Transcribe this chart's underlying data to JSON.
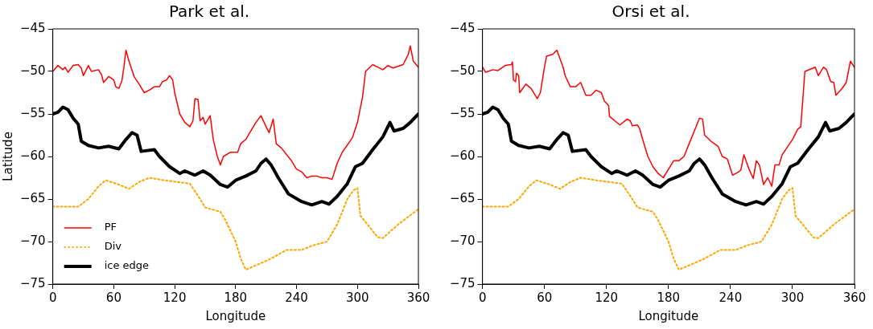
{
  "chart_data": [
    {
      "type": "line",
      "title": "Park et al.",
      "xlabel": "Longitude",
      "ylabel": "Latitude",
      "xlim": [
        0,
        360
      ],
      "xticks": [
        0,
        60,
        120,
        180,
        240,
        300,
        360
      ],
      "ylim": [
        -75,
        -45
      ],
      "yticks": [
        -75,
        -70,
        -65,
        -60,
        -55,
        -50,
        -45
      ],
      "legend": "bottom left",
      "grid": false,
      "series": [
        {
          "name": "PF",
          "color": "#ff0000",
          "line_style": "solid",
          "x": [
            0,
            5,
            10,
            12,
            15,
            20,
            25,
            28,
            30,
            35,
            38,
            45,
            48,
            50,
            55,
            60,
            62,
            65,
            68,
            70,
            72,
            75,
            80,
            85,
            90,
            95,
            100,
            105,
            108,
            112,
            115,
            118,
            120,
            125,
            130,
            135,
            138,
            140,
            143,
            145,
            148,
            150,
            155,
            158,
            162,
            165,
            168,
            175,
            182,
            185,
            190,
            195,
            200,
            205,
            210,
            213,
            217,
            220,
            225,
            235,
            240,
            245,
            250,
            255,
            260,
            265,
            270,
            275,
            280,
            285,
            295,
            300,
            305,
            308,
            315,
            320,
            325,
            330,
            335,
            345,
            350,
            352,
            355,
            360
          ],
          "values": [
            -50,
            -49.3,
            -49.8,
            -49.5,
            -50.1,
            -49.3,
            -49.2,
            -49.6,
            -50.5,
            -49.3,
            -50,
            -49.8,
            -50.4,
            -51.3,
            -50.6,
            -51,
            -51.8,
            -52,
            -51.1,
            -49.5,
            -47.5,
            -48.8,
            -50.6,
            -51.5,
            -52.5,
            -52.2,
            -51.8,
            -51.8,
            -51.2,
            -51,
            -50.5,
            -51,
            -52.5,
            -55,
            -56,
            -56.5,
            -55.8,
            -53.2,
            -53.3,
            -55.8,
            -55.4,
            -56.2,
            -55.2,
            -58,
            -60,
            -61,
            -60,
            -59.5,
            -59.5,
            -58.5,
            -58,
            -57,
            -56,
            -55.2,
            -56.5,
            -57.2,
            -55.6,
            -58.5,
            -59,
            -60.5,
            -61.5,
            -61.8,
            -62.5,
            -62.3,
            -62.3,
            -62.5,
            -62.5,
            -62.7,
            -60.8,
            -59.5,
            -57.8,
            -56,
            -53,
            -50,
            -49.2,
            -49.5,
            -49.8,
            -49.3,
            -49.6,
            -49.2,
            -48,
            -47,
            -48.8,
            -49.5
          ]
        },
        {
          "name": "Div",
          "color": "#ffa500",
          "line_style": "dotted",
          "x": [
            0,
            25,
            35,
            45,
            52,
            65,
            75,
            85,
            95,
            110,
            135,
            145,
            150,
            165,
            170,
            180,
            185,
            190,
            200,
            215,
            230,
            245,
            255,
            270,
            280,
            290,
            296,
            300,
            303,
            310,
            320,
            325,
            340,
            360
          ],
          "values": [
            -65.9,
            -65.9,
            -65,
            -63.5,
            -62.8,
            -63.3,
            -63.8,
            -63,
            -62.5,
            -62.8,
            -63.2,
            -65,
            -66,
            -66.5,
            -67.5,
            -70,
            -72,
            -73.3,
            -72.8,
            -72,
            -71,
            -71,
            -70.5,
            -70,
            -68,
            -65,
            -64,
            -63.7,
            -67,
            -68,
            -69.5,
            -69.6,
            -68,
            -66.2
          ]
        },
        {
          "name": "ice edge",
          "color": "#000000",
          "line_style": "solid",
          "x": [
            0,
            5,
            10,
            15,
            20,
            25,
            28,
            35,
            45,
            55,
            65,
            72,
            78,
            83,
            87,
            100,
            105,
            115,
            125,
            130,
            140,
            148,
            155,
            165,
            172,
            180,
            190,
            200,
            205,
            210,
            215,
            222,
            232,
            245,
            255,
            265,
            272,
            280,
            290,
            298,
            305,
            315,
            325,
            332,
            336,
            345,
            352,
            360
          ],
          "values": [
            -55,
            -54.8,
            -54.2,
            -54.5,
            -55.5,
            -56.2,
            -58.2,
            -58.7,
            -59,
            -58.8,
            -59.1,
            -58,
            -57.2,
            -57.5,
            -59.4,
            -59.2,
            -60,
            -61.2,
            -62,
            -61.7,
            -62.2,
            -61.7,
            -62.2,
            -63.3,
            -63.6,
            -62.8,
            -62.3,
            -61.7,
            -60.8,
            -60.3,
            -61,
            -62.5,
            -64.4,
            -65.3,
            -65.7,
            -65.3,
            -65.6,
            -64.7,
            -63.2,
            -61.2,
            -60.8,
            -59.2,
            -57.7,
            -56,
            -57,
            -56.7,
            -56,
            -55
          ]
        }
      ]
    },
    {
      "type": "line",
      "title": "Orsi et al.",
      "xlabel": "Longitude",
      "xlim": [
        0,
        360
      ],
      "xticks": [
        0,
        60,
        120,
        180,
        240,
        300,
        360
      ],
      "ylim": [
        -75,
        -45
      ],
      "yticks": [
        -75,
        -70,
        -65,
        -60,
        -55,
        -50,
        -45
      ],
      "legend": false,
      "grid": false,
      "series": [
        {
          "color": "#ff0000",
          "line_style": "solid",
          "x": [
            0,
            3,
            10,
            15,
            22,
            28,
            29,
            30,
            32,
            33,
            35,
            36,
            42,
            47,
            53,
            56,
            60,
            62,
            68,
            72,
            78,
            80,
            85,
            90,
            95,
            100,
            105,
            110,
            115,
            118,
            122,
            123,
            128,
            133,
            140,
            143,
            145,
            150,
            152,
            155,
            160,
            165,
            170,
            175,
            180,
            185,
            190,
            195,
            200,
            205,
            210,
            213,
            215,
            222,
            228,
            232,
            237,
            242,
            248,
            250,
            253,
            255,
            258,
            262,
            265,
            268,
            272,
            276,
            280,
            283,
            287,
            290,
            300,
            305,
            308,
            312,
            322,
            325,
            330,
            333,
            337,
            340,
            342,
            348,
            352,
            356,
            360
          ],
          "values": [
            -49.5,
            -50.1,
            -49.8,
            -49.9,
            -49.3,
            -49.2,
            -48.9,
            -51,
            -51.2,
            -50.2,
            -50.5,
            -52.5,
            -51.5,
            -52,
            -53.2,
            -52.5,
            -49.5,
            -48.2,
            -48,
            -47.5,
            -49.5,
            -50.5,
            -51.8,
            -51.8,
            -51.3,
            -52.8,
            -52.8,
            -52.2,
            -52.5,
            -53.5,
            -54,
            -55.3,
            -55.8,
            -56.3,
            -55.6,
            -55.8,
            -56.4,
            -56.3,
            -56.7,
            -58,
            -60,
            -61.2,
            -62,
            -62.5,
            -61.5,
            -60.5,
            -60.5,
            -60,
            -58.5,
            -57,
            -55.5,
            -55.6,
            -57.5,
            -58.3,
            -58.8,
            -60,
            -60.3,
            -62.2,
            -61.8,
            -61.6,
            -59.8,
            -60.5,
            -61.5,
            -62.6,
            -60.5,
            -61,
            -63.3,
            -62.5,
            -63.5,
            -61,
            -61,
            -59.8,
            -58,
            -56.8,
            -56.5,
            -50,
            -49.5,
            -50.5,
            -49.5,
            -49.8,
            -51.2,
            -51.3,
            -52.8,
            -52,
            -51.3,
            -48.8,
            -49.5
          ]
        },
        {
          "color": "#ffa500",
          "line_style": "dotted",
          "x": [
            0,
            25,
            35,
            45,
            52,
            65,
            75,
            85,
            95,
            110,
            135,
            145,
            150,
            165,
            170,
            180,
            185,
            190,
            200,
            215,
            230,
            245,
            255,
            270,
            280,
            290,
            296,
            300,
            303,
            310,
            320,
            325,
            340,
            360
          ],
          "values": [
            -65.9,
            -65.9,
            -65,
            -63.5,
            -62.8,
            -63.3,
            -63.8,
            -63,
            -62.5,
            -62.8,
            -63.2,
            -65,
            -66,
            -66.5,
            -67.5,
            -70,
            -72,
            -73.3,
            -72.8,
            -72,
            -71,
            -71,
            -70.5,
            -70,
            -68,
            -65,
            -64,
            -63.7,
            -67,
            -68,
            -69.5,
            -69.6,
            -68,
            -66.2
          ]
        },
        {
          "color": "#000000",
          "line_style": "solid",
          "x": [
            0,
            5,
            10,
            15,
            20,
            25,
            28,
            35,
            45,
            55,
            65,
            72,
            78,
            83,
            87,
            100,
            105,
            115,
            125,
            130,
            140,
            148,
            155,
            165,
            172,
            180,
            190,
            200,
            205,
            210,
            215,
            222,
            232,
            245,
            255,
            265,
            272,
            280,
            290,
            298,
            305,
            315,
            325,
            332,
            336,
            345,
            352,
            360
          ],
          "values": [
            -55,
            -54.8,
            -54.2,
            -54.5,
            -55.5,
            -56.2,
            -58.2,
            -58.7,
            -59,
            -58.8,
            -59.1,
            -58,
            -57.2,
            -57.5,
            -59.4,
            -59.2,
            -60,
            -61.2,
            -62,
            -61.7,
            -62.2,
            -61.7,
            -62.2,
            -63.3,
            -63.6,
            -62.8,
            -62.3,
            -61.7,
            -60.8,
            -60.3,
            -61,
            -62.5,
            -64.4,
            -65.3,
            -65.7,
            -65.3,
            -65.6,
            -64.7,
            -63.2,
            -61.2,
            -60.8,
            -59.2,
            -57.7,
            -56,
            -57,
            -56.7,
            -56,
            -55
          ]
        }
      ]
    }
  ]
}
